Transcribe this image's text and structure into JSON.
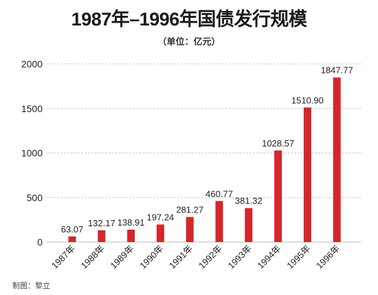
{
  "chart_data": {
    "type": "bar",
    "title": "1987年–1996年国债发行规模",
    "subtitle": "（单位：亿元）",
    "categories": [
      "1987年",
      "1988年",
      "1989年",
      "1990年",
      "1991年",
      "1992年",
      "1993年",
      "1994年",
      "1995年",
      "1996年"
    ],
    "values": [
      63.07,
      132.17,
      138.91,
      197.24,
      281.27,
      460.77,
      381.32,
      1028.57,
      1510.9,
      1847.77
    ],
    "value_labels": [
      "63.07",
      "132.17",
      "138.91",
      "197.24",
      "281.27",
      "460.77",
      "381.32",
      "1028.57",
      "1510.90",
      "1847.77"
    ],
    "ylim": [
      0,
      2000
    ],
    "yticks": [
      0,
      500,
      1000,
      1500,
      2000
    ],
    "grid": "horizontal-dashed",
    "bar_color": "#d4262b",
    "credit": "制图：黎立"
  }
}
